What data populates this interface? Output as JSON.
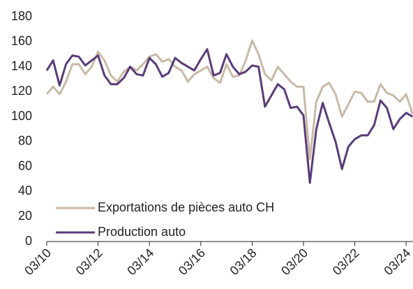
{
  "chart_data": {
    "type": "line",
    "categories": [
      "03/10",
      null,
      null,
      null,
      null,
      null,
      null,
      null,
      "03/12",
      null,
      null,
      null,
      null,
      null,
      null,
      null,
      "03/14",
      null,
      null,
      null,
      null,
      null,
      null,
      null,
      "03/16",
      null,
      null,
      null,
      null,
      null,
      null,
      null,
      "03/18",
      null,
      null,
      null,
      null,
      null,
      null,
      null,
      "03/20",
      null,
      null,
      null,
      null,
      null,
      null,
      null,
      "03/22",
      null,
      null,
      null,
      null,
      null,
      null,
      null,
      "03/24",
      null
    ],
    "series": [
      {
        "name": "Exportations de pièces auto CH",
        "color": "#c9b9a7",
        "values": [
          118,
          124,
          118,
          128,
          142,
          142,
          134,
          140,
          152,
          145,
          133,
          128,
          136,
          140,
          137,
          142,
          148,
          150,
          144,
          146,
          140,
          137,
          128,
          134,
          137,
          140,
          131,
          127,
          142,
          132,
          133,
          145,
          161,
          150,
          134,
          129,
          140,
          134,
          128,
          124,
          124,
          66,
          112,
          124,
          127,
          118,
          100,
          110,
          120,
          119,
          112,
          112,
          126,
          119,
          117,
          112,
          118,
          102
        ]
      },
      {
        "name": "Production auto",
        "color": "#5a3b79",
        "values": [
          137,
          145,
          125,
          142,
          149,
          148,
          141,
          145,
          149,
          133,
          126,
          126,
          131,
          140,
          134,
          133,
          147,
          142,
          132,
          135,
          147,
          143,
          140,
          137,
          146,
          154,
          133,
          135,
          150,
          140,
          134,
          136,
          141,
          140,
          108,
          117,
          126,
          122,
          107,
          108,
          101,
          47,
          90,
          111,
          95,
          80,
          58,
          76,
          82,
          85,
          85,
          93,
          113,
          107,
          90,
          98,
          103,
          100
        ]
      }
    ],
    "ylim": [
      0,
      180
    ],
    "yticks": [
      0,
      20,
      40,
      60,
      80,
      100,
      120,
      140,
      160,
      180
    ],
    "legend": "lower left",
    "grid": false
  }
}
